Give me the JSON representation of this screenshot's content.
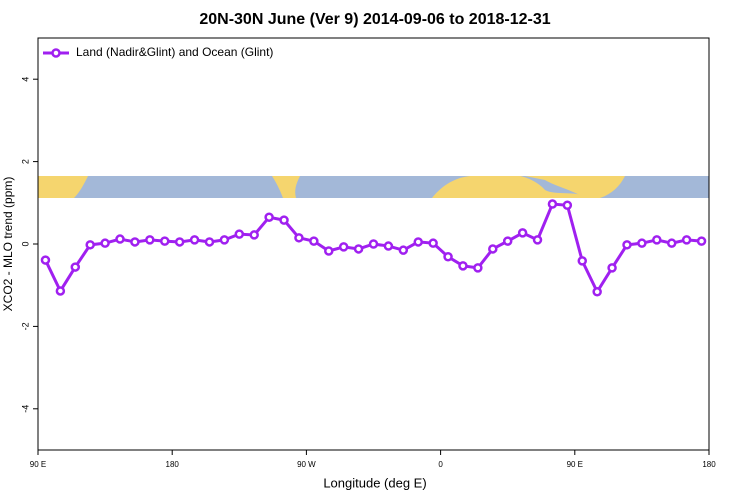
{
  "chart_data": {
    "type": "line",
    "title": "20N-30N June (Ver 9)   2014-09-06 to 2018-12-31",
    "x_label": "Longitude (deg E)",
    "y_label": "XCO2 - MLO trend (ppm)",
    "x": [
      95,
      105,
      115,
      125,
      135,
      145,
      155,
      165,
      175,
      185,
      195,
      205,
      215,
      225,
      235,
      245,
      255,
      265,
      275,
      285,
      295,
      305,
      315,
      325,
      335,
      345,
      355,
      365,
      375,
      385,
      395,
      405,
      415,
      425,
      435,
      445,
      455,
      465,
      475,
      485,
      495,
      505,
      515,
      525,
      535
    ],
    "series": [
      {
        "name": "Land (Nadir&Glint) and Ocean (Glint)",
        "color": "#a020f0",
        "values": [
          -0.39,
          -1.14,
          -0.56,
          -0.02,
          0.02,
          0.12,
          0.05,
          0.1,
          0.07,
          0.05,
          0.1,
          0.05,
          0.1,
          0.24,
          0.22,
          0.65,
          0.58,
          0.15,
          0.07,
          -0.17,
          -0.07,
          -0.12,
          0,
          -0.05,
          -0.15,
          0.05,
          0.02,
          -0.31,
          -0.53,
          -0.58,
          -0.12,
          0.07,
          0.27,
          0.1,
          0.97,
          0.94,
          -0.41,
          -1.16,
          -0.58,
          -0.02,
          0.02,
          0.1,
          0.02,
          0.1,
          0.07
        ]
      }
    ],
    "xlim": [
      90,
      540
    ],
    "xticks": [
      {
        "value": 90,
        "label": "90 E"
      },
      180,
      {
        "value": 270,
        "label": "90 W"
      },
      {
        "value": 360,
        "label": "0"
      },
      {
        "value": 450,
        "label": "90 E"
      },
      {
        "value": 540,
        "label": "180"
      }
    ],
    "ylim": [
      -5,
      5
    ],
    "yticks": [
      -4,
      -2,
      0,
      2,
      4
    ],
    "grid": false,
    "legend": "top-left"
  }
}
